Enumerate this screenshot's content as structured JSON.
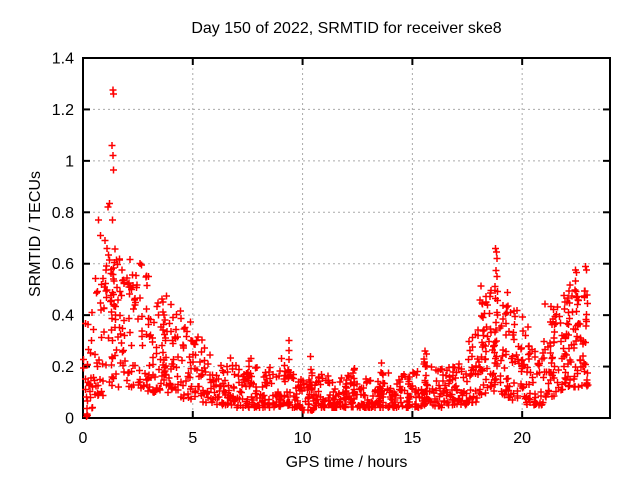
{
  "chart_data": {
    "type": "scatter",
    "title": "Day 150 of 2022, SRMTID for receiver ske8",
    "xlabel": "GPS time / hours",
    "ylabel": "SRMTID / TECUs",
    "xlim": [
      0,
      24
    ],
    "ylim": [
      0,
      1.4
    ],
    "xticks": [
      [
        0,
        "0"
      ],
      [
        5,
        "5"
      ],
      [
        10,
        "10"
      ],
      [
        15,
        "15"
      ],
      [
        20,
        "20"
      ]
    ],
    "yticks": [
      [
        0,
        "0"
      ],
      [
        0.2,
        "0.2"
      ],
      [
        0.4,
        "0.4"
      ],
      [
        0.6,
        "0.6"
      ],
      [
        0.8,
        "0.8"
      ],
      [
        1,
        "1"
      ],
      [
        1.2,
        "1.2"
      ],
      [
        1.4,
        "1.4"
      ]
    ],
    "grid": true,
    "legend": "none",
    "marker": {
      "shape": "plus",
      "color": "#ff0000",
      "size": 7,
      "stroke_width": 1.5
    },
    "colors": {
      "background": "#ffffff",
      "axis": "#000000",
      "grid": "#aaaaaa",
      "text": "#000000"
    },
    "data_hour_range": [
      0,
      23
    ],
    "outliers": [
      [
        1.36,
        1.275
      ],
      [
        1.39,
        1.26
      ],
      [
        1.33,
        1.06
      ],
      [
        1.36,
        1.02
      ],
      [
        1.38,
        0.965
      ],
      [
        1.2,
        0.835
      ],
      [
        1.13,
        0.82
      ],
      [
        0.7,
        0.77
      ],
      [
        1.35,
        0.77
      ],
      [
        0.8,
        0.71
      ],
      [
        1.0,
        0.69
      ],
      [
        1.1,
        0.66
      ],
      [
        2.6,
        0.6
      ],
      [
        18.78,
        0.66
      ],
      [
        18.82,
        0.645
      ],
      [
        18.85,
        0.62
      ],
      [
        22.42,
        0.575
      ],
      [
        22.48,
        0.565
      ],
      [
        22.88,
        0.59
      ],
      [
        22.92,
        0.575
      ],
      [
        0.15,
        0.005
      ],
      [
        0.18,
        0.015
      ],
      [
        0.21,
        0.01
      ]
    ],
    "spikes_format": "[hour_center, y_min, y_max, count]",
    "spikes": [
      [
        1.35,
        0.2,
        0.62,
        12
      ],
      [
        3.7,
        0.15,
        0.49,
        10
      ],
      [
        7.6,
        0.08,
        0.25,
        6
      ],
      [
        9.4,
        0.1,
        0.31,
        8
      ],
      [
        10.4,
        0.06,
        0.24,
        6
      ],
      [
        12.3,
        0.05,
        0.22,
        6
      ],
      [
        13.6,
        0.05,
        0.22,
        6
      ],
      [
        15.6,
        0.07,
        0.3,
        8
      ],
      [
        16.9,
        0.07,
        0.26,
        6
      ],
      [
        18.3,
        0.15,
        0.47,
        10
      ],
      [
        18.8,
        0.18,
        0.6,
        14
      ],
      [
        19.3,
        0.12,
        0.5,
        8
      ],
      [
        20.0,
        0.1,
        0.42,
        8
      ],
      [
        21.4,
        0.15,
        0.52,
        10
      ],
      [
        22.1,
        0.18,
        0.5,
        8
      ],
      [
        22.5,
        0.2,
        0.55,
        10
      ],
      [
        22.9,
        0.15,
        0.5,
        8
      ]
    ],
    "bands_format": "[hour_start, hour_end, y_min, y_max, count, bottom_skew]",
    "bands": [
      [
        0.0,
        0.5,
        0.03,
        0.42,
        26,
        1.35
      ],
      [
        0.5,
        1.0,
        0.08,
        0.55,
        28,
        1.35
      ],
      [
        1.0,
        1.5,
        0.12,
        0.66,
        30,
        1.35
      ],
      [
        1.5,
        2.0,
        0.12,
        0.64,
        30,
        1.35
      ],
      [
        2.0,
        2.5,
        0.12,
        0.62,
        30,
        1.35
      ],
      [
        2.5,
        3.0,
        0.1,
        0.6,
        28,
        1.5
      ],
      [
        3.0,
        3.5,
        0.1,
        0.46,
        28,
        1.5
      ],
      [
        3.5,
        4.0,
        0.08,
        0.5,
        28,
        1.5
      ],
      [
        4.0,
        4.5,
        0.08,
        0.42,
        26,
        1.5
      ],
      [
        4.5,
        5.0,
        0.07,
        0.38,
        26,
        1.7
      ],
      [
        5.0,
        5.5,
        0.06,
        0.33,
        26,
        1.7
      ],
      [
        5.5,
        6.0,
        0.06,
        0.3,
        26,
        1.7
      ],
      [
        6.0,
        6.5,
        0.05,
        0.26,
        26,
        1.8
      ],
      [
        6.5,
        7.0,
        0.05,
        0.24,
        26,
        1.8
      ],
      [
        7.0,
        7.5,
        0.04,
        0.22,
        26,
        1.8
      ],
      [
        7.5,
        8.0,
        0.04,
        0.2,
        26,
        1.9
      ],
      [
        8.0,
        8.5,
        0.04,
        0.18,
        26,
        1.9
      ],
      [
        8.5,
        9.0,
        0.04,
        0.2,
        26,
        1.9
      ],
      [
        9.0,
        9.5,
        0.04,
        0.24,
        26,
        1.9
      ],
      [
        9.5,
        10.0,
        0.04,
        0.18,
        26,
        1.9
      ],
      [
        10.0,
        10.5,
        0.03,
        0.15,
        26,
        1.9
      ],
      [
        10.5,
        11.0,
        0.04,
        0.18,
        26,
        1.9
      ],
      [
        11.0,
        11.5,
        0.04,
        0.17,
        26,
        1.9
      ],
      [
        11.5,
        12.0,
        0.04,
        0.16,
        26,
        1.9
      ],
      [
        12.0,
        12.5,
        0.04,
        0.17,
        26,
        1.9
      ],
      [
        12.5,
        13.0,
        0.04,
        0.16,
        26,
        1.9
      ],
      [
        13.0,
        13.5,
        0.04,
        0.17,
        26,
        1.9
      ],
      [
        13.5,
        14.0,
        0.04,
        0.18,
        26,
        1.9
      ],
      [
        14.0,
        14.5,
        0.04,
        0.16,
        26,
        1.9
      ],
      [
        14.5,
        15.0,
        0.04,
        0.17,
        26,
        1.9
      ],
      [
        15.0,
        15.5,
        0.04,
        0.19,
        26,
        1.9
      ],
      [
        15.5,
        16.0,
        0.05,
        0.24,
        26,
        1.9
      ],
      [
        16.0,
        16.5,
        0.04,
        0.2,
        26,
        1.9
      ],
      [
        16.5,
        17.0,
        0.05,
        0.21,
        26,
        1.9
      ],
      [
        17.0,
        17.5,
        0.05,
        0.25,
        26,
        1.8
      ],
      [
        17.5,
        18.0,
        0.06,
        0.35,
        28,
        1.6
      ],
      [
        18.0,
        18.5,
        0.09,
        0.52,
        30,
        1.5
      ],
      [
        18.5,
        19.0,
        0.1,
        0.5,
        28,
        1.5
      ],
      [
        19.0,
        19.5,
        0.08,
        0.46,
        26,
        1.6
      ],
      [
        19.5,
        20.0,
        0.07,
        0.43,
        26,
        1.6
      ],
      [
        20.0,
        20.5,
        0.05,
        0.36,
        26,
        1.7
      ],
      [
        20.5,
        21.0,
        0.05,
        0.3,
        26,
        1.7
      ],
      [
        21.0,
        21.5,
        0.08,
        0.45,
        28,
        1.5
      ],
      [
        21.5,
        22.0,
        0.1,
        0.48,
        28,
        1.45
      ],
      [
        22.0,
        22.5,
        0.12,
        0.52,
        28,
        1.4
      ],
      [
        22.5,
        23.0,
        0.12,
        0.55,
        28,
        1.4
      ]
    ],
    "seed": 150822
  }
}
